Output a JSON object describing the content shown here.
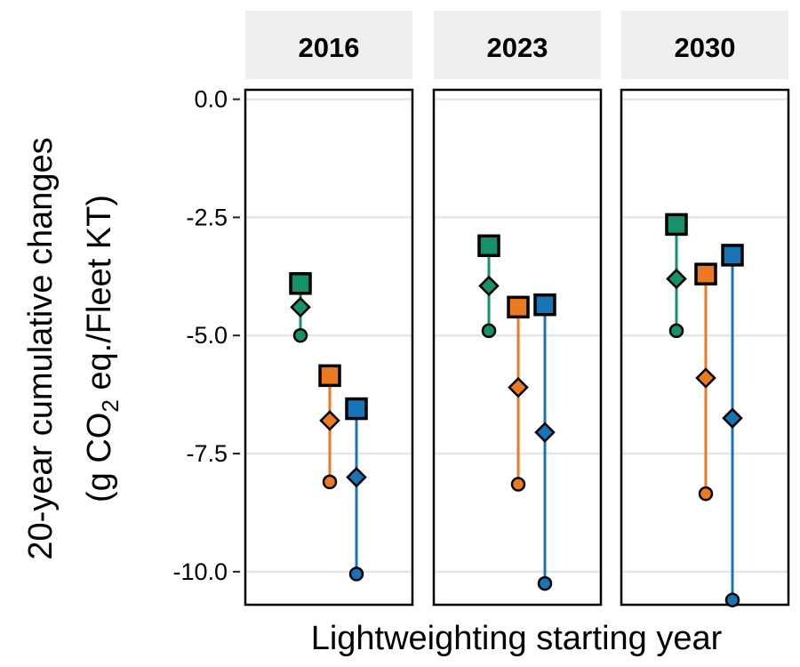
{
  "chart_data": {
    "type": "scatter",
    "xlabel": "Lightweighting starting year",
    "ylabel": {
      "line1": "20-year cumulative changes",
      "line2_prefix": "(g CO",
      "line2_sub": "2",
      "line2_suffix": " eq./Fleet KT)"
    },
    "ylim": [
      -10.7,
      0.2
    ],
    "yticks": [
      0.0,
      -2.5,
      -5.0,
      -7.5,
      -10.0
    ],
    "ytick_labels": [
      "0.0",
      "-2.5",
      "-5.0",
      "-7.5",
      "-10.0"
    ],
    "grid": "horizontal",
    "legend": "none",
    "panels": [
      "2016",
      "2023",
      "2030"
    ],
    "series": [
      {
        "color": "#16916b",
        "values": {
          "2016": {
            "square": -3.9,
            "diamond": -4.4,
            "circle": -5.0
          },
          "2023": {
            "square": -3.1,
            "diamond": -3.95,
            "circle": -4.9
          },
          "2030": {
            "square": -2.65,
            "diamond": -3.8,
            "circle": -4.9
          }
        }
      },
      {
        "color": "#ec7a22",
        "values": {
          "2016": {
            "square": -5.85,
            "diamond": -6.8,
            "circle": -8.1
          },
          "2023": {
            "square": -4.4,
            "diamond": -6.1,
            "circle": -8.15
          },
          "2030": {
            "square": -3.7,
            "diamond": -5.9,
            "circle": -8.35
          }
        }
      },
      {
        "color": "#1874b4",
        "values": {
          "2016": {
            "square": -6.55,
            "diamond": -8.0,
            "circle": -10.05
          },
          "2023": {
            "square": -4.35,
            "diamond": -7.05,
            "circle": -10.25
          },
          "2030": {
            "square": -3.3,
            "diamond": -6.75,
            "circle": -10.6
          }
        }
      }
    ]
  }
}
